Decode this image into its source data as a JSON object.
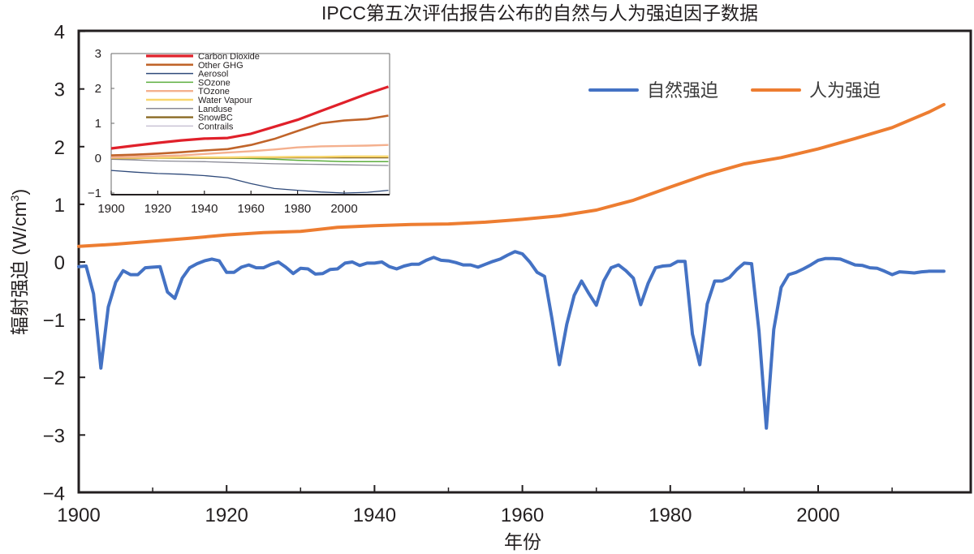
{
  "chart_data": [
    {
      "type": "line",
      "title": "IPCC第五次评估报告公布的自然与人为强迫因子数据",
      "xlabel": "年份",
      "ylabel": "辐射强迫 (W/cm³)",
      "ylabel_parts": {
        "main": "辐射强迫 (W/cm",
        "sup": "3",
        "close": ")"
      },
      "xlim": [
        1900,
        2017
      ],
      "ylim": [
        -4,
        4
      ],
      "xticks": [
        1900,
        1920,
        1940,
        1960,
        1980,
        2000
      ],
      "xtick_labels": [
        "1900",
        "1920",
        "1940",
        "1960",
        "1980",
        "2000"
      ],
      "minor_xticks": [
        1910,
        1930,
        1950,
        1970,
        1990,
        2010
      ],
      "yticks": [
        -4,
        -3,
        -2,
        -1,
        0,
        1,
        2,
        3,
        4
      ],
      "ytick_labels": [
        "−4",
        "−3",
        "−2",
        "−1",
        "0",
        "1",
        "2",
        "3",
        "4"
      ],
      "grid": false,
      "legend_position": "top-right",
      "series": [
        {
          "name": "自然强迫",
          "color": "#4472c4",
          "x": [
            1900,
            1901,
            1902,
            1903,
            1904,
            1905,
            1906,
            1907,
            1908,
            1909,
            1910,
            1911,
            1912,
            1913,
            1914,
            1915,
            1916,
            1917,
            1918,
            1919,
            1920,
            1921,
            1922,
            1923,
            1924,
            1925,
            1926,
            1927,
            1928,
            1929,
            1930,
            1931,
            1932,
            1933,
            1934,
            1935,
            1936,
            1937,
            1938,
            1939,
            1940,
            1941,
            1942,
            1943,
            1944,
            1945,
            1946,
            1947,
            1948,
            1949,
            1950,
            1951,
            1952,
            1953,
            1954,
            1955,
            1956,
            1957,
            1958,
            1959,
            1960,
            1961,
            1962,
            1963,
            1964,
            1965,
            1966,
            1967,
            1968,
            1969,
            1970,
            1971,
            1972,
            1973,
            1974,
            1975,
            1976,
            1977,
            1978,
            1979,
            1980,
            1981,
            1982,
            1983,
            1984,
            1985,
            1986,
            1987,
            1988,
            1989,
            1990,
            1991,
            1992,
            1993,
            1994,
            1995,
            1996,
            1997,
            1998,
            1999,
            2000,
            2001,
            2002,
            2003,
            2004,
            2005,
            2006,
            2007,
            2008,
            2009,
            2010,
            2011,
            2012,
            2013,
            2014,
            2015,
            2016,
            2017
          ],
          "values": [
            -0.08,
            -0.07,
            -0.55,
            -1.84,
            -0.78,
            -0.35,
            -0.15,
            -0.22,
            -0.22,
            -0.1,
            -0.09,
            -0.08,
            -0.52,
            -0.63,
            -0.28,
            -0.1,
            -0.03,
            0.02,
            0.05,
            0.02,
            -0.18,
            -0.18,
            -0.09,
            -0.05,
            -0.1,
            -0.1,
            -0.04,
            0.0,
            -0.09,
            -0.2,
            -0.11,
            -0.12,
            -0.21,
            -0.2,
            -0.13,
            -0.12,
            -0.02,
            0.0,
            -0.06,
            -0.02,
            -0.02,
            0.0,
            -0.08,
            -0.12,
            -0.07,
            -0.04,
            -0.04,
            0.03,
            0.08,
            0.03,
            0.02,
            -0.01,
            -0.05,
            -0.05,
            -0.09,
            -0.04,
            0.01,
            0.05,
            0.12,
            0.18,
            0.14,
            0.0,
            -0.18,
            -0.25,
            -0.98,
            -1.78,
            -1.08,
            -0.58,
            -0.33,
            -0.55,
            -0.75,
            -0.33,
            -0.1,
            -0.05,
            -0.15,
            -0.28,
            -0.74,
            -0.37,
            -0.1,
            -0.07,
            -0.06,
            0.01,
            0.01,
            -1.25,
            -1.78,
            -0.73,
            -0.33,
            -0.33,
            -0.27,
            -0.13,
            -0.02,
            -0.03,
            -1.2,
            -2.88,
            -1.17,
            -0.44,
            -0.22,
            -0.18,
            -0.12,
            -0.05,
            0.03,
            0.06,
            0.06,
            0.05,
            0.0,
            -0.05,
            -0.06,
            -0.1,
            -0.11,
            -0.16,
            -0.22,
            -0.17,
            -0.18,
            -0.19,
            -0.17,
            -0.16,
            -0.16,
            -0.16
          ]
        },
        {
          "name": "人为强迫",
          "color": "#ed7d31",
          "x": [
            1900,
            1905,
            1910,
            1915,
            1920,
            1925,
            1930,
            1935,
            1940,
            1945,
            1950,
            1955,
            1960,
            1965,
            1970,
            1975,
            1980,
            1985,
            1990,
            1995,
            2000,
            2005,
            2010,
            2015,
            2017
          ],
          "values": [
            0.27,
            0.31,
            0.36,
            0.41,
            0.47,
            0.51,
            0.53,
            0.6,
            0.63,
            0.65,
            0.66,
            0.69,
            0.74,
            0.8,
            0.9,
            1.07,
            1.3,
            1.52,
            1.7,
            1.81,
            1.96,
            2.14,
            2.33,
            2.6,
            2.73
          ]
        }
      ]
    },
    {
      "type": "line",
      "title": "",
      "xlim": [
        1900,
        2019
      ],
      "ylim": [
        -1,
        3
      ],
      "xticks": [
        1900,
        1920,
        1940,
        1960,
        1980,
        2000
      ],
      "xtick_labels": [
        "1900",
        "1920",
        "1940",
        "1960",
        "1980",
        "2000"
      ],
      "yticks": [
        -1,
        0,
        1,
        2,
        3
      ],
      "ytick_labels": [
        "−1",
        "0",
        "1",
        "2",
        "3"
      ],
      "grid": false,
      "legend_position": "top-left",
      "x": [
        1900,
        1910,
        1920,
        1930,
        1940,
        1950,
        1960,
        1970,
        1980,
        1990,
        2000,
        2010,
        2019
      ],
      "series": [
        {
          "name": "Carbon Dioxide",
          "color": "#e0202a",
          "width": 3.2,
          "values": [
            0.28,
            0.36,
            0.44,
            0.51,
            0.56,
            0.58,
            0.7,
            0.9,
            1.1,
            1.35,
            1.6,
            1.85,
            2.05
          ]
        },
        {
          "name": "Other GHG",
          "color": "#c0642a",
          "width": 2.6,
          "values": [
            0.08,
            0.1,
            0.13,
            0.17,
            0.22,
            0.26,
            0.38,
            0.55,
            0.78,
            1.0,
            1.08,
            1.12,
            1.22
          ]
        },
        {
          "name": "Aerosol",
          "color": "#2f4a7a",
          "width": 1.3,
          "values": [
            -0.35,
            -0.4,
            -0.44,
            -0.46,
            -0.5,
            -0.56,
            -0.73,
            -0.87,
            -0.92,
            -0.97,
            -1.0,
            -0.98,
            -0.92
          ]
        },
        {
          "name": "SOzone",
          "color": "#5cae3e",
          "width": 1.5,
          "values": [
            0.0,
            0.0,
            0.0,
            0.0,
            0.0,
            0.0,
            -0.01,
            -0.03,
            -0.06,
            -0.08,
            -0.1,
            -0.1,
            -0.1
          ]
        },
        {
          "name": "TOzone",
          "color": "#f4b08e",
          "width": 2.4,
          "values": [
            0.02,
            0.04,
            0.06,
            0.08,
            0.12,
            0.16,
            0.2,
            0.25,
            0.31,
            0.34,
            0.35,
            0.36,
            0.38
          ]
        },
        {
          "name": "Water Vapour",
          "color": "#f8d66c",
          "width": 2.4,
          "values": [
            0.01,
            0.01,
            0.01,
            0.02,
            0.02,
            0.02,
            0.03,
            0.03,
            0.04,
            0.04,
            0.05,
            0.05,
            0.05
          ]
        },
        {
          "name": "Landuse",
          "color": "#8a8a96",
          "width": 1.3,
          "values": [
            -0.03,
            -0.05,
            -0.08,
            -0.09,
            -0.1,
            -0.12,
            -0.14,
            -0.16,
            -0.17,
            -0.18,
            -0.19,
            -0.2,
            -0.21
          ]
        },
        {
          "name": "SnowBC",
          "color": "#8a6a24",
          "width": 2.4,
          "values": [
            0.0,
            0.0,
            0.01,
            0.01,
            0.01,
            0.01,
            0.02,
            0.02,
            0.02,
            0.02,
            0.02,
            0.02,
            0.02
          ]
        },
        {
          "name": "Contrails",
          "color": "#c9c2d4",
          "width": 1.3,
          "values": [
            0.0,
            0.0,
            0.0,
            0.0,
            0.0,
            0.0,
            0.0,
            0.0,
            0.01,
            0.01,
            0.01,
            0.02,
            0.02
          ]
        }
      ]
    }
  ]
}
